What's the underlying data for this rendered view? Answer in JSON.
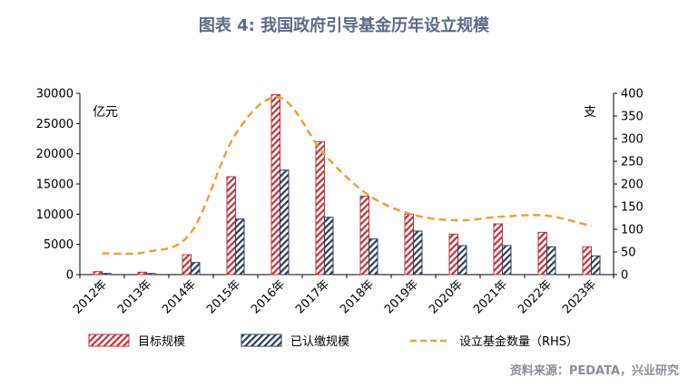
{
  "title": "图表 4:  我国政府引导基金历年设立规模",
  "source": "资料来源：PEDATA，兴业研究",
  "chart_data": {
    "type": "bar",
    "categories": [
      "2012年",
      "2013年",
      "2014年",
      "2015年",
      "2016年",
      "2017年",
      "2018年",
      "2019年",
      "2020年",
      "2021年",
      "2022年",
      "2023年"
    ],
    "y_left": {
      "unit": "亿元",
      "ylim": [
        0,
        30000
      ],
      "ticks": [
        "0",
        "5000",
        "10000",
        "15000",
        "20000",
        "25000",
        "30000"
      ]
    },
    "y_right": {
      "unit": "支",
      "ylim": [
        0,
        400
      ],
      "ticks": [
        "0",
        "50",
        "100",
        "150",
        "200",
        "250",
        "300",
        "350",
        "400"
      ]
    },
    "series": [
      {
        "name": "目标规模",
        "type": "bar",
        "axis": "left",
        "color": "#c0313f",
        "values": [
          500,
          400,
          3300,
          16200,
          29800,
          22000,
          13000,
          10000,
          6700,
          8400,
          7000,
          4600
        ]
      },
      {
        "name": "已认缴规模",
        "type": "bar",
        "axis": "left",
        "color": "#2e3f55",
        "values": [
          200,
          200,
          2000,
          9200,
          17300,
          9500,
          5900,
          7200,
          4800,
          4800,
          4600,
          3100
        ]
      },
      {
        "name": "设立基金数量（RHS）",
        "type": "line",
        "axis": "right",
        "color": "#e8a23a",
        "values": [
          47,
          50,
          93,
          310,
          390,
          265,
          175,
          132,
          120,
          128,
          130,
          107
        ]
      }
    ],
    "grid": false,
    "legend_position": "bottom"
  }
}
